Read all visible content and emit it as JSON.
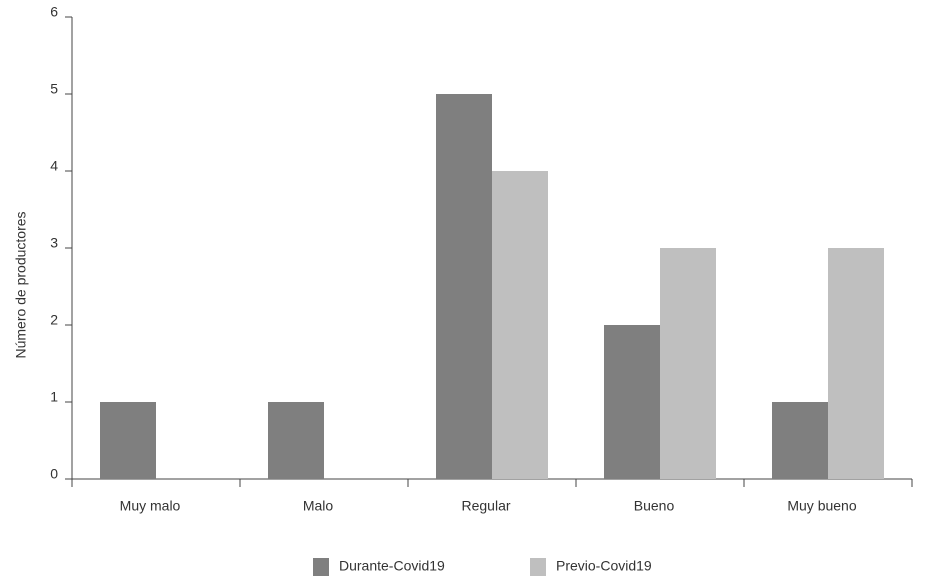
{
  "chart_data": {
    "type": "bar",
    "y_label": "Número de productores",
    "categories": [
      "Muy malo",
      "Malo",
      "Regular",
      "Bueno",
      "Muy bueno"
    ],
    "series": [
      {
        "name": "Durante-Covid19",
        "color": "#7f7f7f",
        "values": [
          1,
          1,
          5,
          2,
          1
        ]
      },
      {
        "name": "Previo-Covid19",
        "color": "#bfbfbf",
        "values": [
          0,
          0,
          4,
          3,
          3
        ]
      }
    ],
    "ylim": [
      0,
      6
    ],
    "yticks": [
      0,
      1,
      2,
      3,
      4,
      5,
      6
    ],
    "grid": false,
    "legend": "bottom"
  }
}
